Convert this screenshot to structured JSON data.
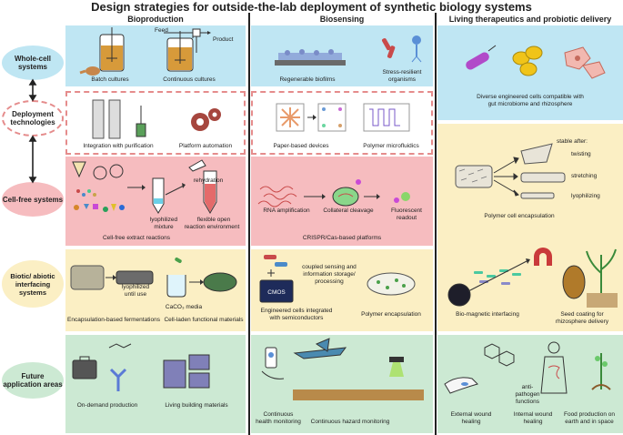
{
  "title": "Design strategies for outside-the-lab deployment of synthetic biology systems",
  "columns": [
    "Bioproduction",
    "Biosensing",
    "Living therapeutics and probiotic delivery"
  ],
  "rows": [
    {
      "label": "Whole-cell systems"
    },
    {
      "label": "Deployment technologies"
    },
    {
      "label": "Cell-free systems"
    },
    {
      "label": "Biotic/ abiotic interfacing systems"
    },
    {
      "label": "Future application areas"
    }
  ],
  "whole_cell": {
    "feed": "Feed",
    "product": "Product",
    "batch": "Batch cultures",
    "continuous": "Continuous cultures",
    "biofilms": "Regenerable biofilms",
    "stress": "Stress-resilient organisms",
    "stress2": "organisms",
    "stress1": "Stress-resilient",
    "diverse1": "Diverse engineered cells compatible with",
    "diverse2": "gut microbiome and rhizosphere"
  },
  "deployment": {
    "integration": "Integration with purification",
    "automation": "Platform automation",
    "paper": "Paper-based devices",
    "polymer": "Polymer microfluidics"
  },
  "cell_free": {
    "lyo1": "lyophilized",
    "lyo2": "mixture",
    "rehydration": "rehydration",
    "flex1": "flexible open",
    "flex2": "reaction environment",
    "extract": "Cell-free extract reactions",
    "rna": "RNA amplification",
    "collateral": "Collateral cleavage",
    "fluor1": "Fluorescent",
    "fluor2": "readout",
    "crispr": "CRISPR/Cas-based platforms",
    "stable": "stable after:",
    "twisting": "twisting",
    "stretching": "stretching",
    "lyophilizing": "lyophilizing",
    "polymer_enc": "Polymer cell encapsulation"
  },
  "interfacing": {
    "lyo_until1": "lyophilized",
    "lyo_until2": "until use",
    "encap_ferm": "Encapsulation-based fermentations",
    "caco3": "CaCO₃ media",
    "laden": "Cell-laden functional materials",
    "coupled1": "coupled sensing and",
    "coupled2": "information storage/",
    "coupled3": "processing",
    "cmos": "CMOS",
    "semi1": "Engineered cells integrated",
    "semi2": "with semiconductors",
    "poly_enc": "Polymer encapsulation",
    "magnetic": "Bio-magnetic interfacing",
    "seed1": "Seed coating for",
    "seed2": "rhizosphere delivery"
  },
  "future": {
    "ondemand": "On-demand production",
    "building": "Living building materials",
    "health1": "Continuous",
    "health2": "health monitoring",
    "hazard": "Continuous hazard monitoring",
    "anti1": "anti-",
    "anti2": "pathogen",
    "anti3": "functions",
    "ext1": "External wound",
    "ext2": "healing",
    "int1": "Internal wound",
    "int2": "healing",
    "food1": "Food production on",
    "food2": "earth and in space"
  },
  "colors": {
    "blue": "#bfe6f3",
    "pink": "#f6bcbf",
    "yellow": "#fbefc4",
    "green": "#cce9d3",
    "dash": "#e58c8c"
  }
}
